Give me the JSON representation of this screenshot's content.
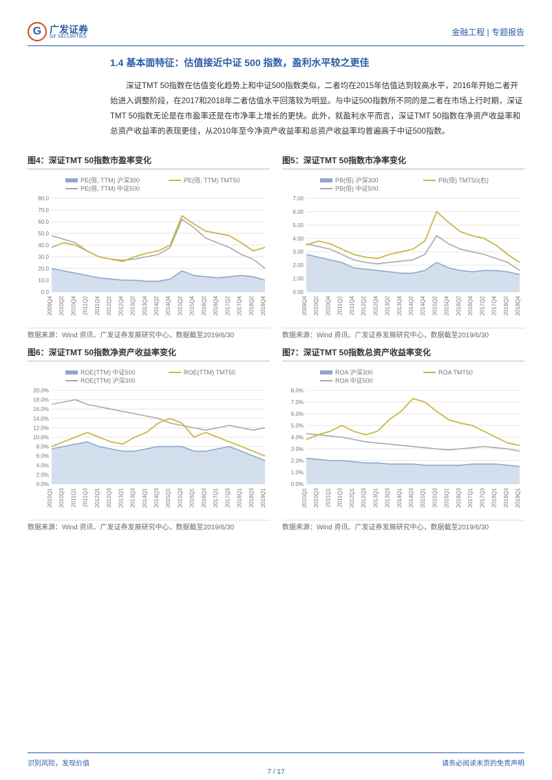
{
  "header": {
    "logo_cn": "广发证券",
    "logo_en": "GF SECURITIES",
    "logo_g": "G",
    "right": "金融工程 | 专题报告"
  },
  "section": {
    "heading": "1.4 基本面特征：估值接近中证 500 指数，盈利水平较之更佳",
    "body": "深证TMT 50指数在估值变化趋势上和中证500指数类似，二者均在2015年估值达到较高水平，2016年开始二者开始进入调整阶段，在2017和2018年二者估值水平回落较为明显。与中证500指数所不同的是二者在市场上行时期，深证TMT 50指数无论是在市盈率还是在市净率上增长的更快。此外，就盈利水平而言，深证TMT 50指数在净资产收益率和总资产收益率的表现更佳，从2010年至今净资产收益率和总资产收益率均普遍高于中证500指数。"
  },
  "charts": {
    "c4": {
      "title": "图4：深证TMT 50指数市盈率变化",
      "legend": [
        "PE(倍, TTM) 沪深300",
        "PE(倍, TTM) TMT50",
        "PE(倍, TTM) 中证500"
      ],
      "legend_colors": [
        "#8ea8cc",
        "#cbb545",
        "#a8a8a8"
      ],
      "ylim": [
        0,
        80
      ],
      "ystep": 10,
      "categories": [
        "2009Q4",
        "2010Q2",
        "2010Q4",
        "2011Q2",
        "2011Q4",
        "2012Q2",
        "2012Q4",
        "2013Q2",
        "2013Q4",
        "2014Q2",
        "2014Q4",
        "2015Q2",
        "2015Q4",
        "2016Q2",
        "2016Q4",
        "2017Q2",
        "2017Q4",
        "2018Q2",
        "2018Q4"
      ],
      "area": [
        20,
        18,
        16,
        14,
        12,
        11,
        10,
        10,
        9,
        9,
        11,
        18,
        14,
        13,
        12,
        13,
        14,
        13,
        10
      ],
      "yellow": [
        38,
        42,
        40,
        35,
        30,
        28,
        26,
        30,
        33,
        35,
        40,
        65,
        58,
        52,
        50,
        48,
        42,
        35,
        38
      ],
      "gray": [
        48,
        45,
        42,
        35,
        30,
        28,
        27,
        28,
        30,
        32,
        38,
        62,
        55,
        46,
        42,
        38,
        32,
        28,
        20
      ],
      "note": "数据来源：Wind 资讯、广发证券发展研究中心，数据截至2019/6/30"
    },
    "c5": {
      "title": "图5：深证TMT 50指数市净率变化",
      "legend": [
        "PB(倍) 沪深300",
        "PB(倍) TMT50(右)",
        "PB(倍) 中证500"
      ],
      "legend_colors": [
        "#8ea8cc",
        "#cbb545",
        "#a8a8a8"
      ],
      "ylim": [
        0,
        7
      ],
      "ystep": 1,
      "categories": [
        "2009Q4",
        "2010Q2",
        "2010Q4",
        "2011Q2",
        "2011Q4",
        "2012Q2",
        "2012Q4",
        "2013Q2",
        "2013Q4",
        "2014Q2",
        "2014Q4",
        "2015Q2",
        "2015Q4",
        "2016Q2",
        "2016Q4",
        "2017Q2",
        "2017Q4",
        "2018Q2",
        "2018Q4"
      ],
      "area": [
        2.8,
        2.6,
        2.4,
        2.2,
        1.8,
        1.7,
        1.6,
        1.5,
        1.4,
        1.4,
        1.6,
        2.2,
        1.8,
        1.6,
        1.5,
        1.6,
        1.6,
        1.5,
        1.3
      ],
      "yellow": [
        3.5,
        3.8,
        3.6,
        3.2,
        2.8,
        2.6,
        2.5,
        2.8,
        3.0,
        3.2,
        3.8,
        6.0,
        5.2,
        4.5,
        4.2,
        4.0,
        3.5,
        2.8,
        2.2
      ],
      "gray": [
        3.6,
        3.4,
        3.2,
        2.8,
        2.4,
        2.2,
        2.1,
        2.2,
        2.3,
        2.4,
        2.8,
        4.2,
        3.6,
        3.2,
        3.0,
        2.8,
        2.5,
        2.2,
        1.6
      ],
      "note": "数据来源：Wind 资讯、广发证券发展研究中心，数据截至2019/6/30"
    },
    "c6": {
      "title": "图6：深证TMT 50指数净资产收益率变化",
      "legend": [
        "ROE(TTM) 中证500",
        "ROE(TTM) TMT50",
        "ROE(TTM) 沪深300"
      ],
      "legend_colors": [
        "#8ea8cc",
        "#cbb545",
        "#a8a8a8"
      ],
      "ylim": [
        0,
        20
      ],
      "ystep": 2,
      "suffix": "%",
      "categories": [
        "2010Q1",
        "2010Q3",
        "2011Q1",
        "2011Q3",
        "2012Q1",
        "2012Q3",
        "2013Q1",
        "2013Q3",
        "2014Q1",
        "2014Q3",
        "2015Q1",
        "2015Q3",
        "2016Q1",
        "2016Q3",
        "2017Q1",
        "2017Q3",
        "2018Q1",
        "2018Q3",
        "2019Q1"
      ],
      "area": [
        7.5,
        8,
        8.5,
        9,
        8,
        7.5,
        7,
        7,
        7.5,
        8,
        8,
        8,
        7,
        7,
        7.5,
        8,
        7,
        6,
        5
      ],
      "yellow": [
        8,
        9,
        10,
        11,
        10,
        9,
        8.5,
        10,
        11,
        13,
        14,
        13,
        10,
        11,
        10,
        9,
        8,
        7,
        6
      ],
      "gray": [
        17,
        17.5,
        18,
        17,
        16.5,
        16,
        15.5,
        15,
        14.5,
        14,
        13,
        12.5,
        12,
        11.5,
        12,
        12.5,
        12,
        11.5,
        12
      ],
      "note": "数据来源：Wind 资讯、广发证券发展研究中心，数据截至2019/6/30"
    },
    "c7": {
      "title": "图7：深证TMT 50指数总资产收益率变化",
      "legend": [
        "ROA 沪深300",
        "ROA TMT50",
        "ROA 中证500"
      ],
      "legend_colors": [
        "#8ea8cc",
        "#cbb545",
        "#a8a8a8"
      ],
      "ylim": [
        0,
        8
      ],
      "ystep": 1,
      "suffix": "%",
      "categories": [
        "2010Q1",
        "2010Q3",
        "2011Q1",
        "2011Q3",
        "2012Q1",
        "2012Q3",
        "2013Q1",
        "2013Q3",
        "2014Q1",
        "2014Q3",
        "2015Q1",
        "2015Q3",
        "2016Q1",
        "2016Q3",
        "2017Q1",
        "2017Q3",
        "2018Q1",
        "2018Q3",
        "2019Q1"
      ],
      "area": [
        2.2,
        2.1,
        2.0,
        2.0,
        1.9,
        1.8,
        1.8,
        1.7,
        1.7,
        1.7,
        1.6,
        1.6,
        1.6,
        1.6,
        1.7,
        1.7,
        1.7,
        1.6,
        1.5
      ],
      "yellow": [
        3.8,
        4.2,
        4.5,
        5.0,
        4.5,
        4.2,
        4.5,
        5.5,
        6.2,
        7.3,
        7.0,
        6.2,
        5.5,
        5.2,
        5.0,
        4.5,
        4.0,
        3.5,
        3.3
      ],
      "gray": [
        4.3,
        4.2,
        4.1,
        4.0,
        3.8,
        3.6,
        3.5,
        3.4,
        3.3,
        3.2,
        3.1,
        3.0,
        2.9,
        3.0,
        3.1,
        3.2,
        3.1,
        3.0,
        2.8
      ],
      "note": "数据来源：Wind 资讯、广发证券发展研究中心，数据截至2019/6/30"
    }
  },
  "footer": {
    "left": "识别风险，发现价值",
    "right": "请务必阅读末页的免责声明",
    "page": "7 / 17"
  },
  "colors": {
    "brand_blue": "#2a5ca6",
    "area": "#cdd9ea",
    "yellow": "#cbb545",
    "gray": "#a8a8a8",
    "grid": "#e5e5e5",
    "text": "#333333"
  }
}
